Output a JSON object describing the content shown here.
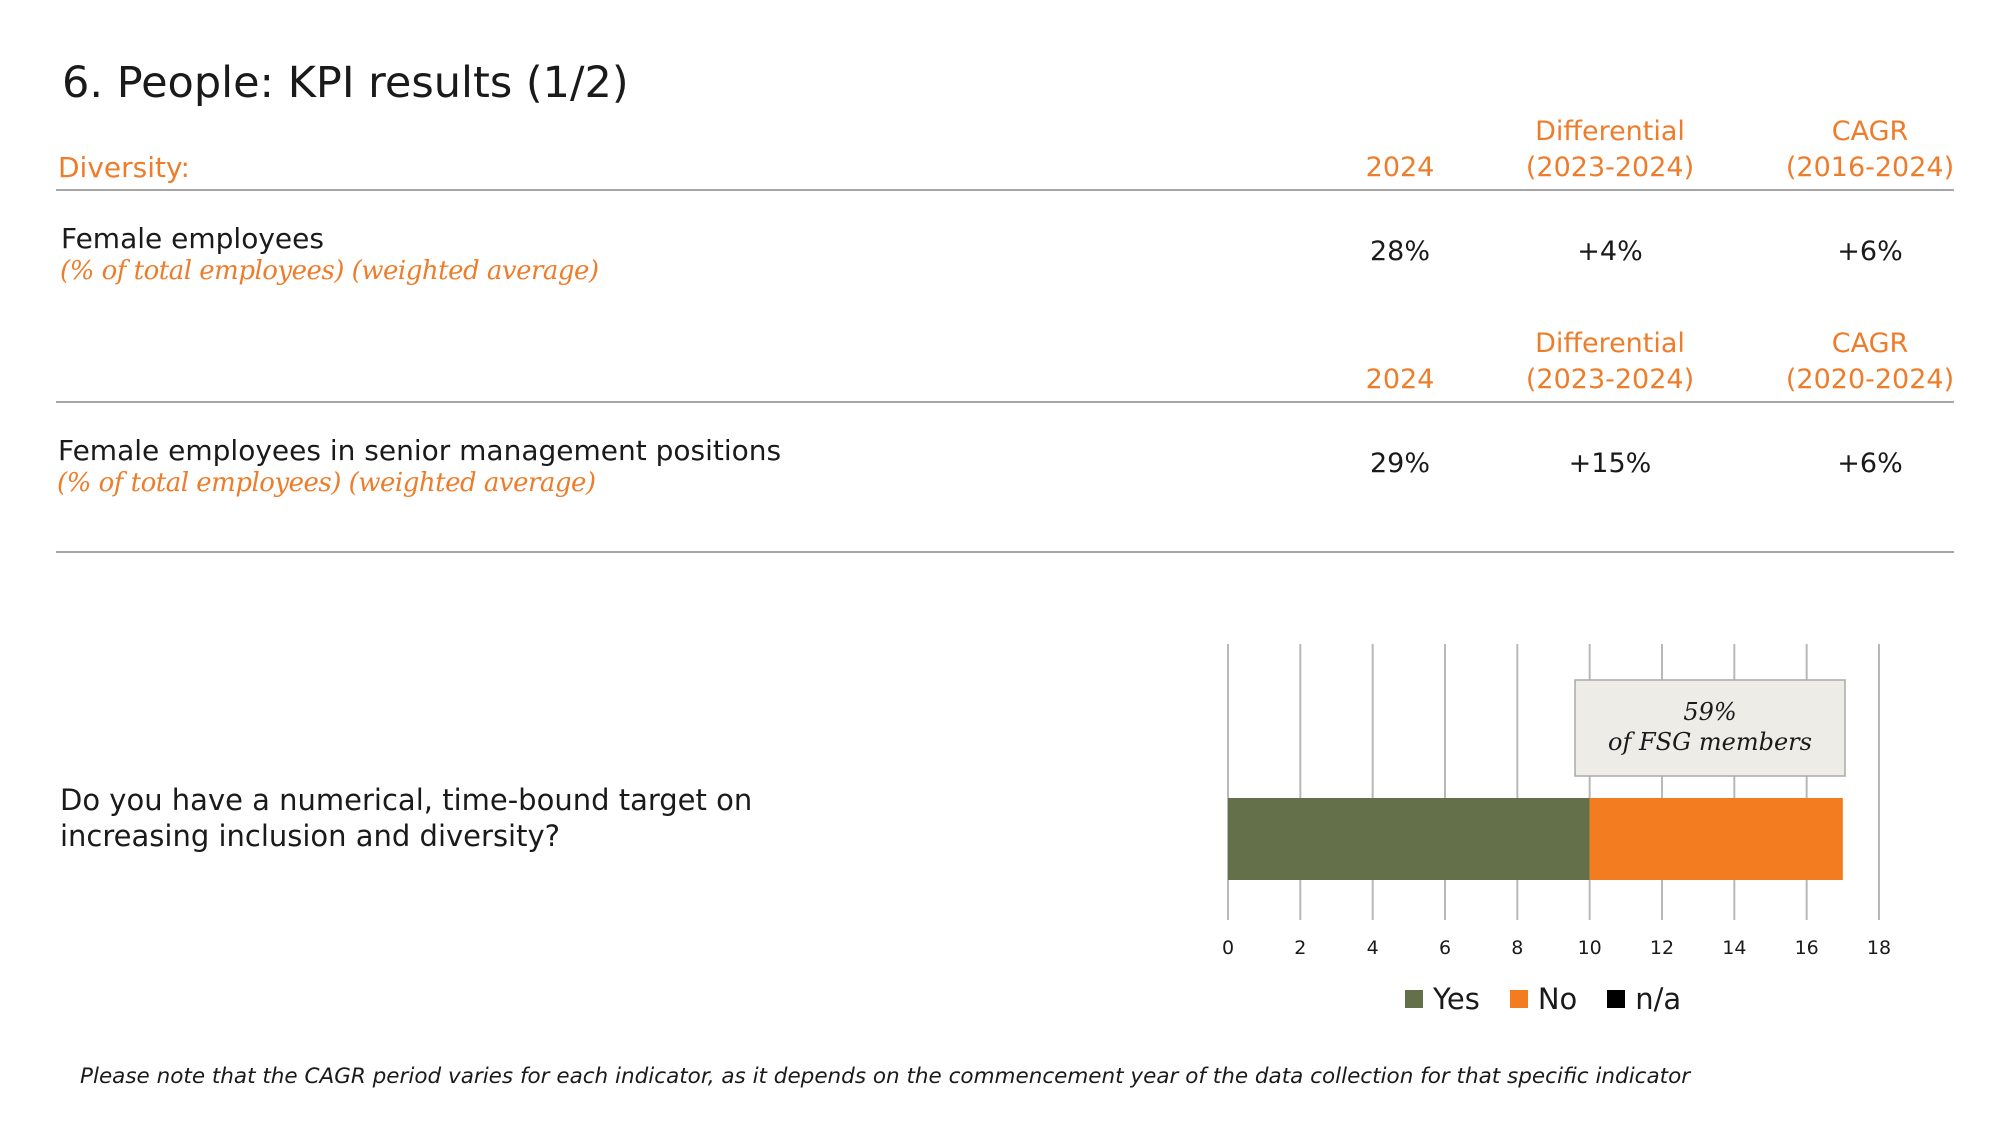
{
  "title": "6. People: KPI results (1/2)",
  "section_label": "Diversity:",
  "table1": {
    "headers": {
      "year": "2024",
      "diff_line1": "Differential",
      "diff_line2": "(2023-2024)",
      "cagr_line1": "CAGR",
      "cagr_line2": "(2016-2024)"
    },
    "row": {
      "label": "Female employees",
      "sub": "(% of total employees) (weighted average)",
      "year_value": "28%",
      "diff_value": "+4%",
      "cagr_value": "+6%"
    }
  },
  "table2": {
    "headers": {
      "year": "2024",
      "diff_line1": "Differential",
      "diff_line2": "(2023-2024)",
      "cagr_line1": "CAGR",
      "cagr_line2": "(2020-2024)"
    },
    "row": {
      "label": "Female employees in senior management positions",
      "sub": "(% of total employees) (weighted average)",
      "year_value": "29%",
      "diff_value": "+15%",
      "cagr_value": "+6%"
    }
  },
  "question": {
    "line1": "Do you have a numerical, time-bound target on",
    "line2": "increasing inclusion and diversity?"
  },
  "chart_data": {
    "type": "bar",
    "orientation": "horizontal",
    "stacked": true,
    "categories": [
      ""
    ],
    "series": [
      {
        "name": "Yes",
        "values": [
          10
        ],
        "color": "#647049"
      },
      {
        "name": "No",
        "values": [
          7
        ],
        "color": "#f47c20"
      },
      {
        "name": "n/a",
        "values": [
          0
        ],
        "color": "#000000"
      }
    ],
    "xlim": [
      0,
      18
    ],
    "xticks": [
      "0",
      "2",
      "4",
      "6",
      "8",
      "10",
      "12",
      "14",
      "16",
      "18"
    ],
    "grid": true,
    "legend_position": "bottom",
    "annotation": {
      "line1": "59%",
      "line2": "of FSG members"
    }
  },
  "footnote": "Please note that the CAGR period varies for each indicator, as it depends on the commencement year of the data collection for that specific indicator"
}
